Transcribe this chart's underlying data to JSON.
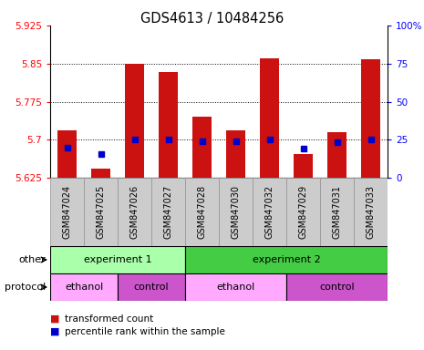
{
  "title": "GDS4613 / 10484256",
  "samples": [
    "GSM847024",
    "GSM847025",
    "GSM847026",
    "GSM847027",
    "GSM847028",
    "GSM847030",
    "GSM847032",
    "GSM847029",
    "GSM847031",
    "GSM847033"
  ],
  "bar_bottom": 5.625,
  "bar_tops": [
    5.718,
    5.643,
    5.85,
    5.833,
    5.745,
    5.718,
    5.86,
    5.672,
    5.715,
    5.858
  ],
  "pct_vals": [
    5.685,
    5.672,
    5.7,
    5.7,
    5.697,
    5.697,
    5.7,
    5.682,
    5.695,
    5.7
  ],
  "ylim_left": [
    5.625,
    5.925
  ],
  "ylim_right": [
    0,
    100
  ],
  "yticks_left": [
    5.625,
    5.7,
    5.775,
    5.85,
    5.925
  ],
  "yticks_right": [
    0,
    25,
    50,
    75,
    100
  ],
  "hlines": [
    5.7,
    5.775,
    5.85
  ],
  "bar_color": "#cc1111",
  "pct_color": "#0000cc",
  "other_groups": [
    {
      "label": "experiment 1",
      "start": 0,
      "end": 4,
      "color": "#aaffaa"
    },
    {
      "label": "experiment 2",
      "start": 4,
      "end": 10,
      "color": "#44cc44"
    }
  ],
  "protocol_groups": [
    {
      "label": "ethanol",
      "start": 0,
      "end": 2,
      "color": "#ffaaff"
    },
    {
      "label": "control",
      "start": 2,
      "end": 4,
      "color": "#cc55cc"
    },
    {
      "label": "ethanol",
      "start": 4,
      "end": 7,
      "color": "#ffaaff"
    },
    {
      "label": "control",
      "start": 7,
      "end": 10,
      "color": "#cc55cc"
    }
  ],
  "row_labels": [
    "other",
    "protocol"
  ],
  "legend": [
    {
      "label": "transformed count",
      "color": "#cc1111"
    },
    {
      "label": "percentile rank within the sample",
      "color": "#0000cc"
    }
  ],
  "label_bg_color": "#cccccc",
  "label_edge_color": "#999999"
}
